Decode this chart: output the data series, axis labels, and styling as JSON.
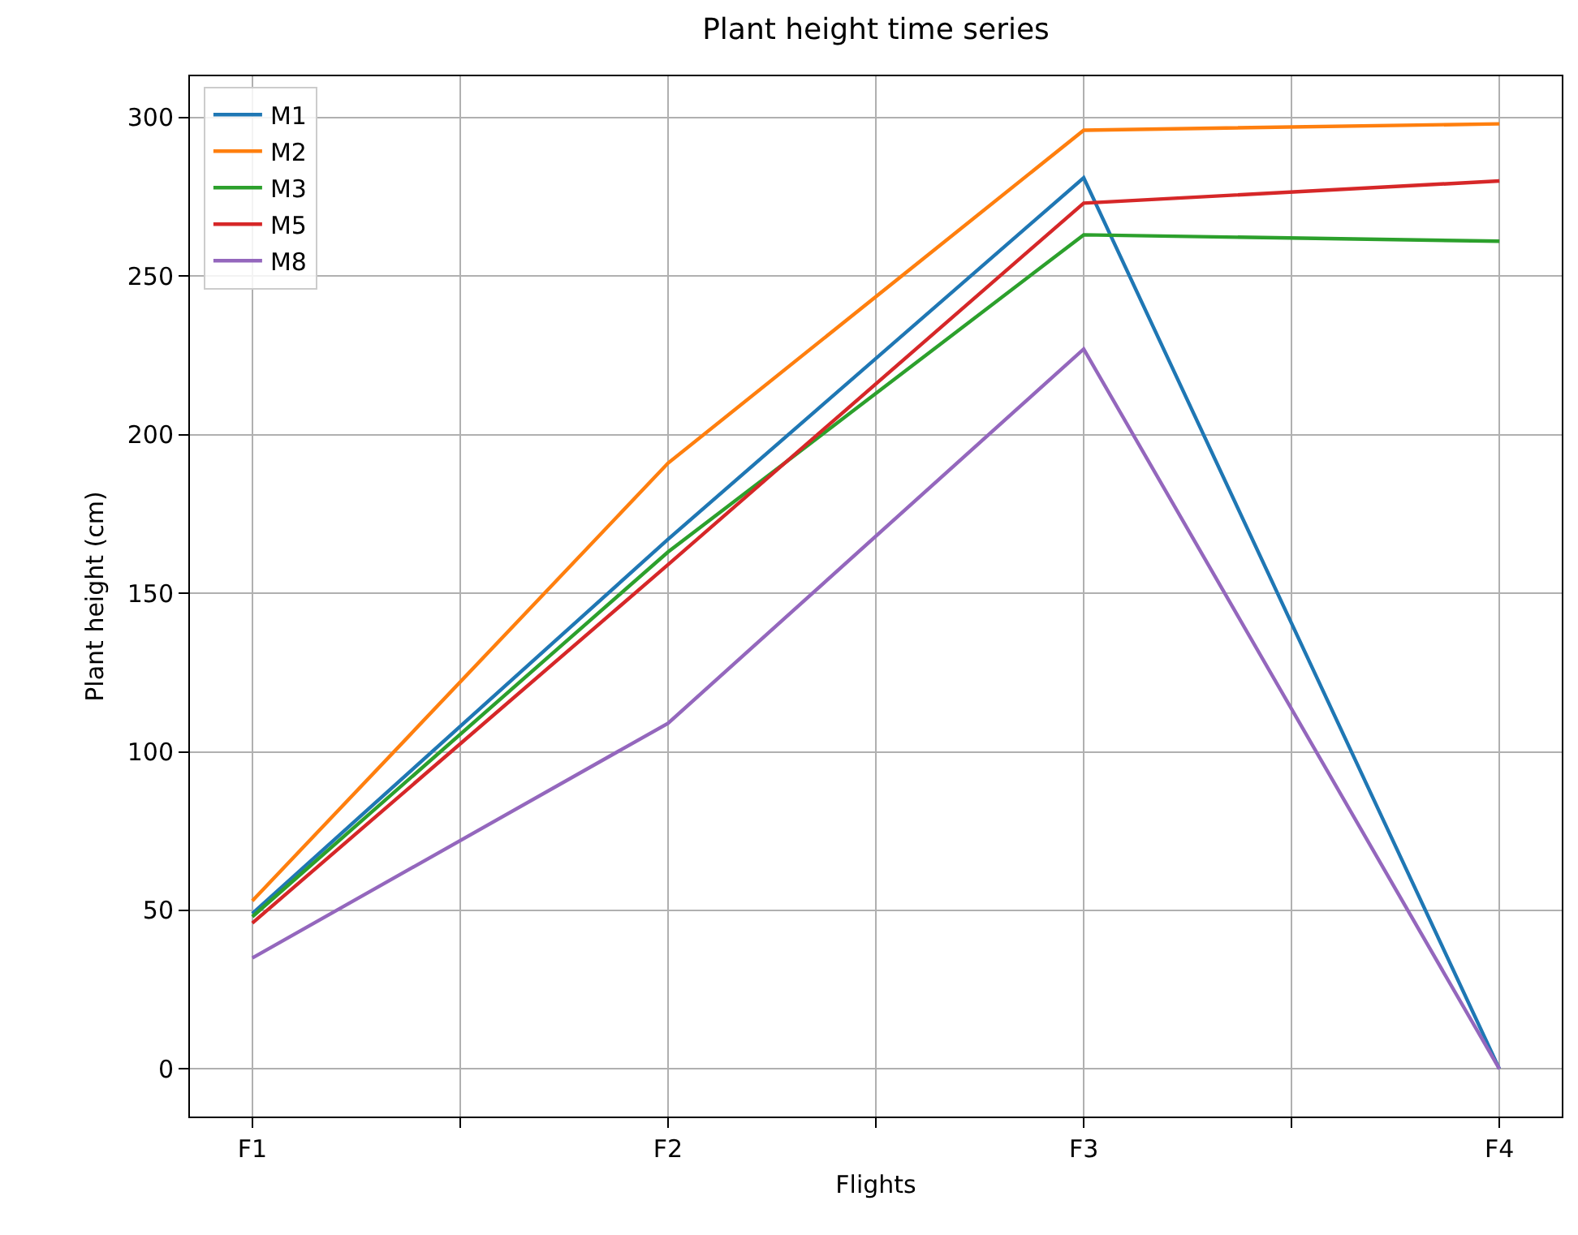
{
  "chart_data": {
    "type": "line",
    "title": "Plant height time series",
    "xlabel": "Flights",
    "ylabel": "Plant height (cm)",
    "categories": [
      "F1",
      "F2",
      "F3",
      "F4"
    ],
    "ylim": [
      -15,
      313
    ],
    "yticks": [
      0,
      50,
      100,
      150,
      200,
      250,
      300
    ],
    "grid": true,
    "legend": "top left",
    "marker": "none",
    "line_style": "solid",
    "series": [
      {
        "name": "M1",
        "color": "#1f77b4",
        "values": [
          49,
          167,
          281,
          0
        ]
      },
      {
        "name": "M2",
        "color": "#ff7f0e",
        "values": [
          53,
          191,
          296,
          298
        ]
      },
      {
        "name": "M3",
        "color": "#2ca02c",
        "values": [
          48,
          163,
          263,
          261
        ]
      },
      {
        "name": "M5",
        "color": "#d62728",
        "values": [
          46,
          159,
          273,
          280
        ]
      },
      {
        "name": "M8",
        "color": "#9467bd",
        "values": [
          35,
          109,
          227,
          0
        ]
      }
    ]
  }
}
